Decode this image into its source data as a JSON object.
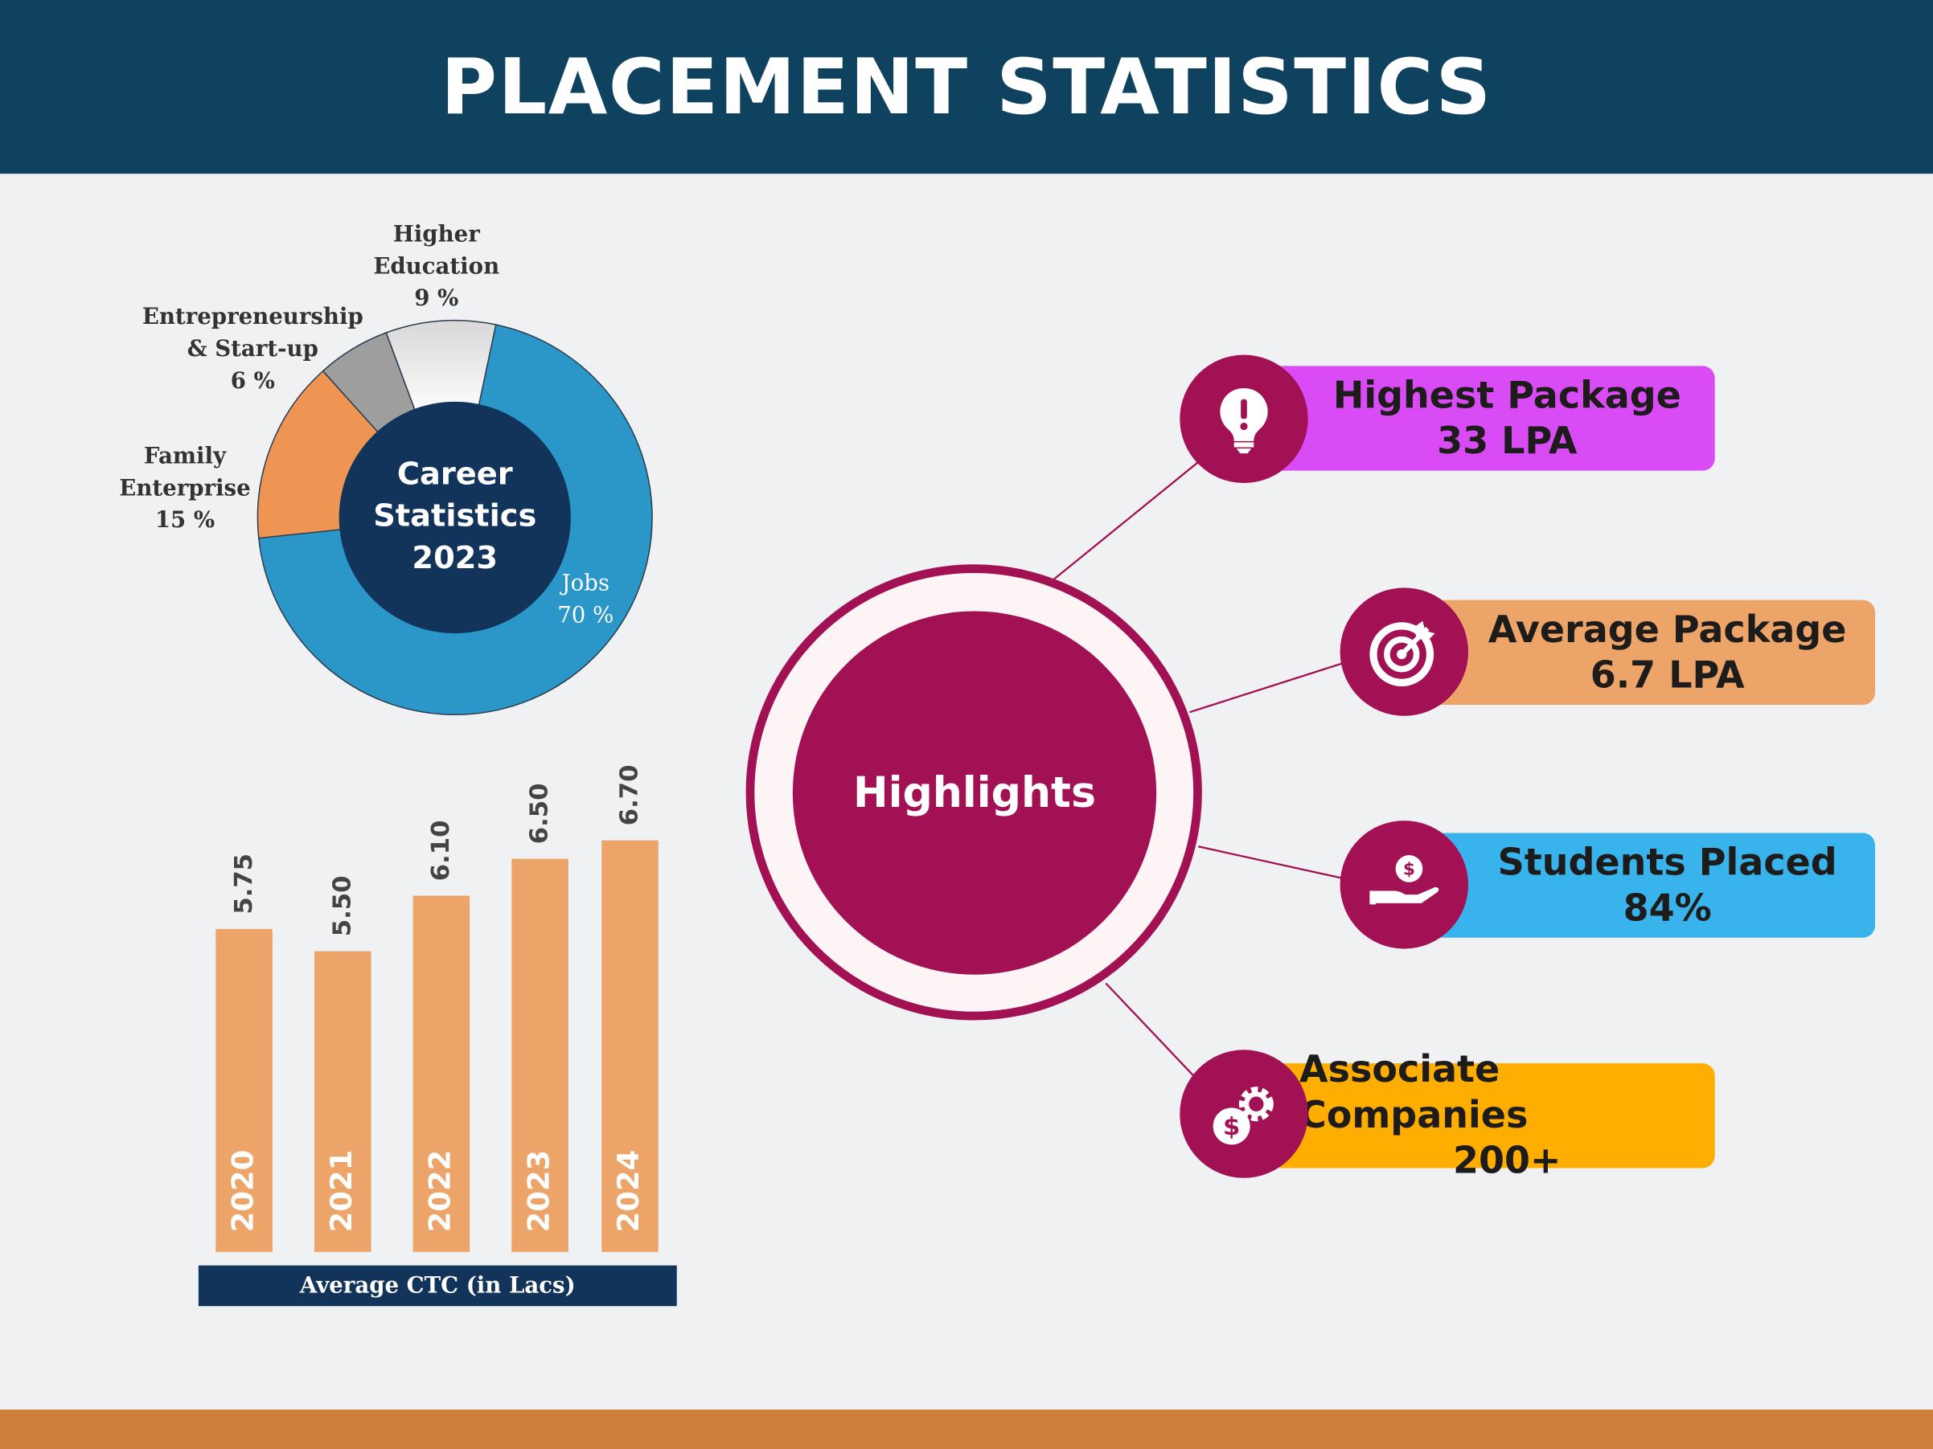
{
  "header": {
    "title": "PLACEMENT STATISTICS"
  },
  "chart_data": [
    {
      "type": "pie",
      "title": "Career Statistics 2023",
      "center_label": "Career\nStatistics\n2023",
      "slices": [
        {
          "label": "Jobs",
          "value": 70,
          "value_label": "70 %",
          "color": "#2a97c8"
        },
        {
          "label": "Family\nEnterprise",
          "value": 15,
          "value_label": "15 %",
          "color": "#ef9554"
        },
        {
          "label": "Entrepreneurship\n& Start-up",
          "value": 6,
          "value_label": "6 %",
          "color": "#9e9e9e"
        },
        {
          "label": "Higher\nEducation",
          "value": 9,
          "value_label": "9 %",
          "color": "#f7f7f7"
        }
      ]
    },
    {
      "type": "bar",
      "title": "Average CTC (in Lacs)",
      "categories": [
        "2020",
        "2021",
        "2022",
        "2023",
        "2024"
      ],
      "values": [
        5.75,
        5.5,
        6.1,
        6.5,
        6.7
      ],
      "value_labels": [
        "5.75",
        "5.50",
        "6.10",
        "6.50",
        "6.70"
      ],
      "ylim": [
        2.25,
        7
      ],
      "color": "#eda468"
    }
  ],
  "highlights": {
    "label": "Highlights",
    "items": [
      {
        "title": "Highest Package",
        "value": "33 LPA",
        "icon": "lightbulb-icon",
        "color": "#d94cf5"
      },
      {
        "title": "Average Package",
        "value": "6.7 LPA",
        "icon": "target-icon",
        "color": "#eda468"
      },
      {
        "title": "Students Placed",
        "value": "84%",
        "icon": "hand-coin-icon",
        "color": "#39b3ec"
      },
      {
        "title": "Associate Companies",
        "value": "200+",
        "icon": "money-gear-icon",
        "color": "#fdae00"
      }
    ]
  }
}
